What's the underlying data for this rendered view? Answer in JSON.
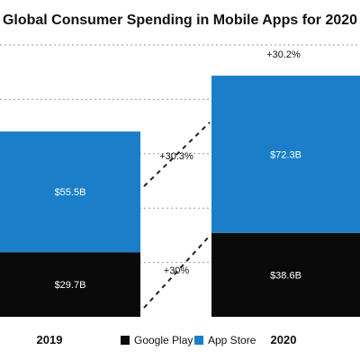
{
  "chart_data": {
    "type": "bar",
    "stacked": true,
    "title": "Global Consumer Spending in Mobile Apps for 2020",
    "categories": [
      "2019",
      "2020"
    ],
    "series": [
      {
        "name": "Google Play",
        "values": [
          29.7,
          38.6
        ],
        "labels": [
          "$29.7B",
          "$38.6B"
        ],
        "color": "#0a0a0a"
      },
      {
        "name": "App Store",
        "values": [
          55.5,
          72.3
        ],
        "labels": [
          "$55.5B",
          "$72.3B"
        ],
        "color": "#1a7fc8"
      }
    ],
    "annotations": {
      "app_store_growth": "+30.3%",
      "google_play_growth": "+30%",
      "total_growth": "+30.2%"
    },
    "ylim": [
      0,
      125
    ],
    "grid": true,
    "legend_position": "bottom"
  }
}
